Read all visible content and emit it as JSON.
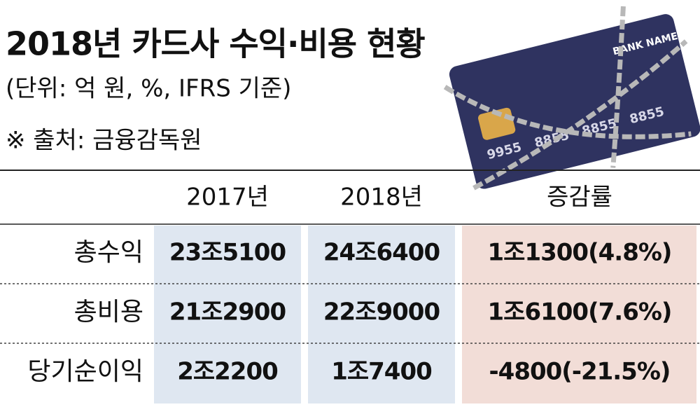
{
  "header": {
    "title": "2018년 카드사 수익·비용 현황",
    "unit": "(단위: 억 원, %, IFRS 기준)",
    "source": "※ 출처: 금융감독원"
  },
  "card": {
    "bank_name": "BANK NAME",
    "number_groups": [
      "9955",
      "8855",
      "8855",
      "8855"
    ]
  },
  "table": {
    "columns": [
      "2017년",
      "2018년",
      "증감률"
    ],
    "rows": [
      {
        "label": "총수익",
        "cells": [
          "23조5100",
          "24조6400",
          "1조1300(4.8%)"
        ]
      },
      {
        "label": "총비용",
        "cells": [
          "21조2900",
          "22조9000",
          "1조6100(7.6%)"
        ]
      },
      {
        "label": "당기순이익",
        "cells": [
          "2조2200",
          "1조7400",
          "-4800(-21.5%)"
        ]
      }
    ]
  }
}
